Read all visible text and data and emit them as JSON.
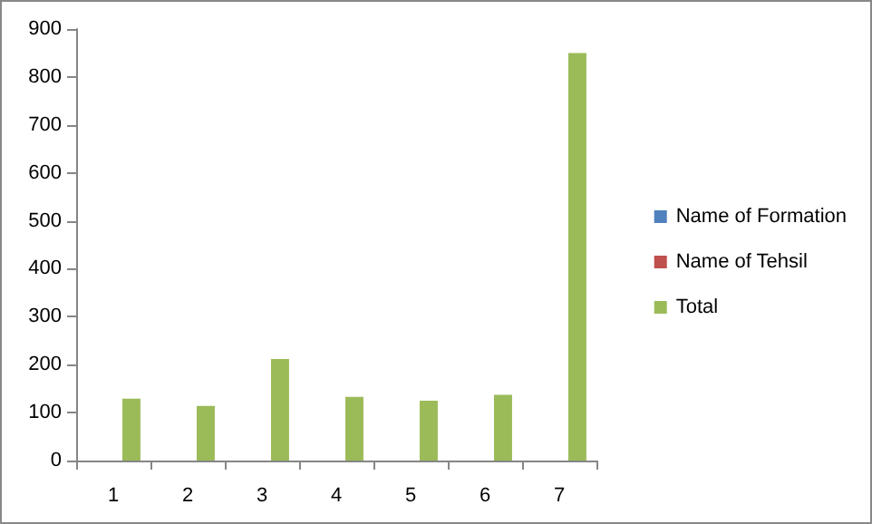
{
  "chart_data": {
    "type": "bar",
    "categories": [
      "1",
      "2",
      "3",
      "4",
      "5",
      "6",
      "7"
    ],
    "series": [
      {
        "name": "Name of Formation",
        "color": "#4f81bd",
        "values": [
          null,
          null,
          null,
          null,
          null,
          null,
          null
        ]
      },
      {
        "name": "Name of Tehsil",
        "color": "#c0504d",
        "values": [
          null,
          null,
          null,
          null,
          null,
          null,
          null
        ]
      },
      {
        "name": "Total",
        "color": "#9bbb59",
        "values": [
          129,
          114,
          212,
          133,
          125,
          137,
          850
        ]
      }
    ],
    "ylim": [
      0,
      900
    ],
    "yticks": [
      0,
      100,
      200,
      300,
      400,
      500,
      600,
      700,
      800,
      900
    ],
    "grid": false,
    "legend": "right"
  }
}
